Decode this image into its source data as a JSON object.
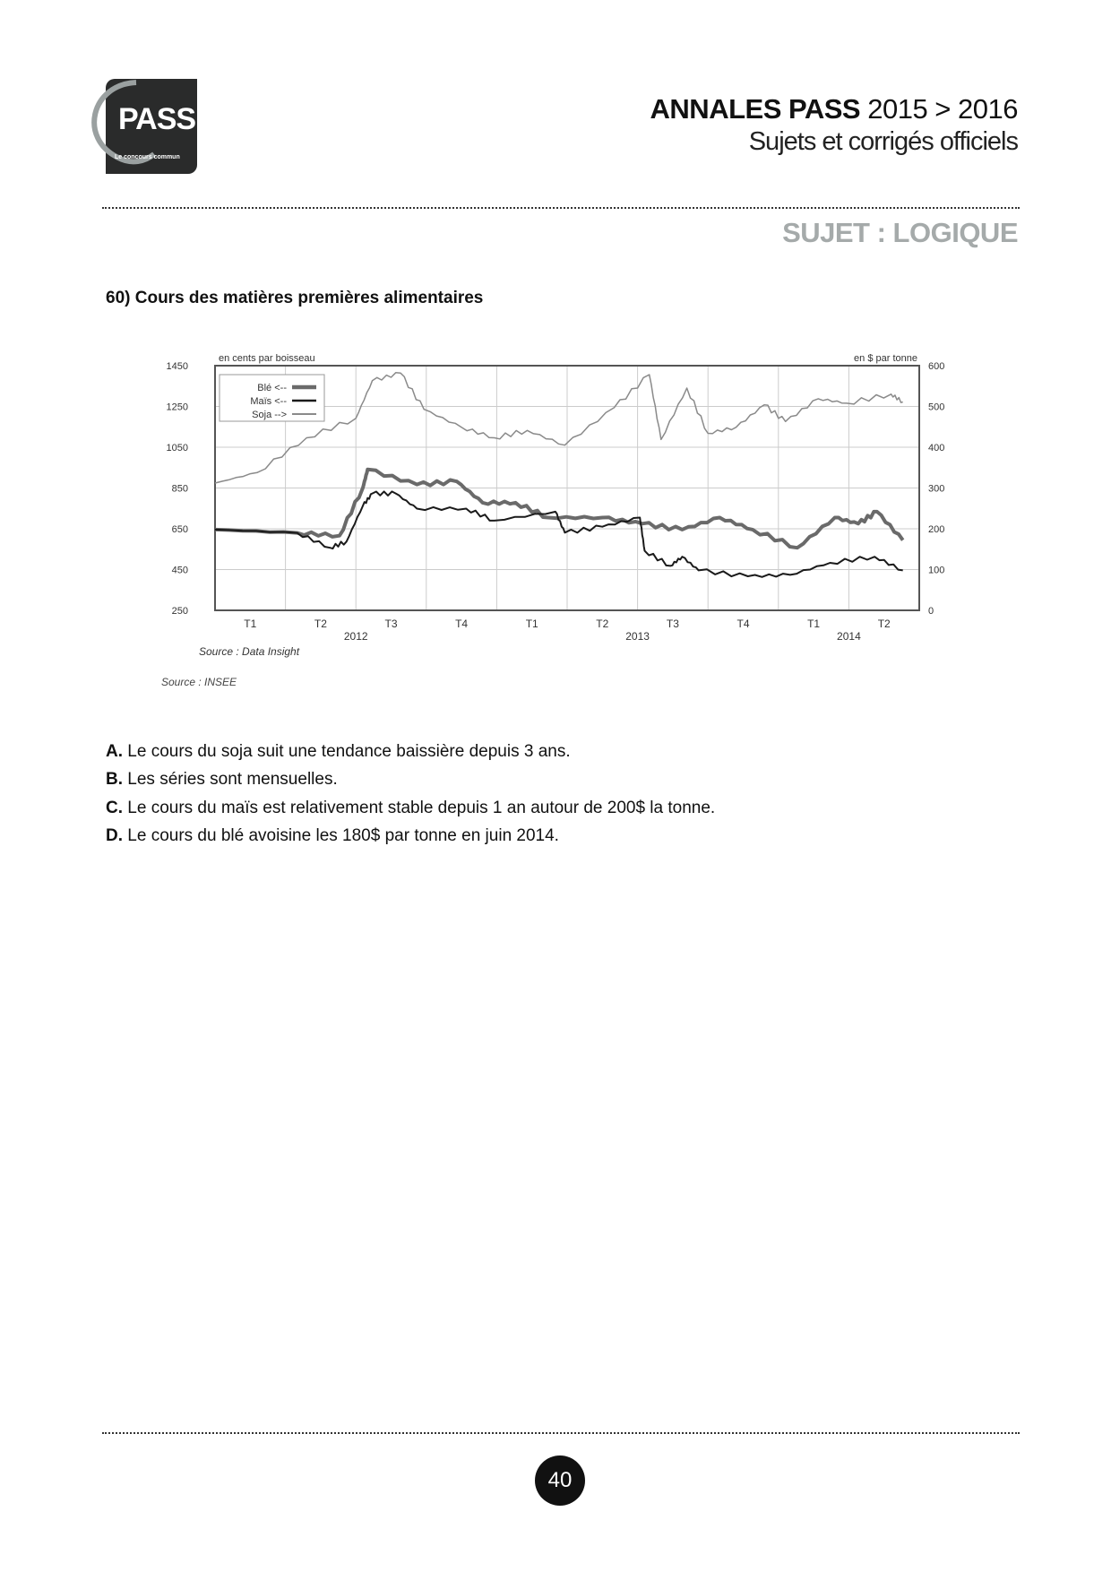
{
  "logo": {
    "text": "PASS",
    "tagline": "Le concours commun"
  },
  "header": {
    "title_bold": "ANNALES PASS",
    "title_years": "2015 > 2016",
    "subtitle": "Sujets et corrigés officiels"
  },
  "subject": "SUJET : LOGIQUE",
  "question": {
    "title": "60) Cours des matières premières alimentaires",
    "options": [
      {
        "letter": "A.",
        "text": "Le cours du soja suit une tendance baissière depuis 3 ans."
      },
      {
        "letter": "B.",
        "text": "Les séries sont mensuelles."
      },
      {
        "letter": "C.",
        "text": "Le cours du maïs est relativement stable depuis 1 an autour de 200$ la tonne."
      },
      {
        "letter": "D.",
        "text": "Le cours du blé avoisine les 180$ par tonne en juin 2014."
      }
    ]
  },
  "chart_data": {
    "type": "line",
    "xlabel": "",
    "ylabel_left": "en cents par boisseau",
    "ylabel_right": "en $ par tonne",
    "ylim_left": [
      250,
      1450
    ],
    "ylim_right": [
      0,
      600
    ],
    "yticks_left": [
      "250",
      "450",
      "650",
      "850",
      "1050",
      "1250",
      "1450"
    ],
    "yticks_right": [
      "0",
      "100",
      "200",
      "300",
      "400",
      "500",
      "600"
    ],
    "x_unit": "months since Jan 2012",
    "xlim": [
      0,
      30
    ],
    "quarter_labels": [
      "T1",
      "T2",
      "T3",
      "T4",
      "T1",
      "T2",
      "T3",
      "T4",
      "T1",
      "T2"
    ],
    "year_labels": [
      {
        "label": "2012",
        "x": 6
      },
      {
        "label": "2013",
        "x": 18
      },
      {
        "label": "2014",
        "x": 27
      }
    ],
    "legend": {
      "placement": "top-left",
      "entries": [
        "Blé <--",
        "Maïs <--",
        "Soja -->"
      ]
    },
    "grid": true,
    "series": [
      {
        "name": "Blé",
        "axis": "left",
        "color": "#6a6a6a",
        "width": 4,
        "x": [
          0,
          3.5,
          5.3,
          6.3,
          6.5,
          8.6,
          10.3,
          11.4,
          12.8,
          14.2,
          16.5,
          18.2,
          19.9,
          21.5,
          22.9,
          24.8,
          26.4,
          27.4,
          28.2,
          29.3
        ],
        "y": [
          646,
          630,
          616,
          852,
          941,
          867,
          882,
          778,
          778,
          705,
          705,
          675,
          646,
          705,
          646,
          557,
          705,
          675,
          734,
          594
        ]
      },
      {
        "name": "Maïs",
        "axis": "left",
        "color": "#1a1a1a",
        "width": 2,
        "x": [
          0,
          3.5,
          4.9,
          5.6,
          6.3,
          6.7,
          7.7,
          8.6,
          10.7,
          11.9,
          14.5,
          14.9,
          16.5,
          18.1,
          18.3,
          19.4,
          19.9,
          20.6,
          22.7,
          24.5,
          26.2,
          28.1,
          29.3
        ],
        "y": [
          646,
          630,
          557,
          587,
          764,
          823,
          823,
          749,
          749,
          690,
          734,
          631,
          660,
          705,
          542,
          468,
          513,
          446,
          417,
          424,
          483,
          513,
          446
        ]
      },
      {
        "name": "Soja",
        "axis": "right",
        "color": "#8a8a8a",
        "width": 1.5,
        "x": [
          0,
          1.8,
          3.9,
          6,
          6.7,
          7.9,
          8.9,
          10.5,
          11.9,
          13.3,
          14.9,
          17,
          18.5,
          19,
          20.1,
          21,
          22.2,
          23.4,
          24.3,
          25.7,
          26.9,
          28.8,
          29.3
        ],
        "y": [
          312,
          338,
          423,
          471,
          563,
          582,
          493,
          449,
          423,
          441,
          405,
          497,
          578,
          419,
          545,
          434,
          449,
          504,
          463,
          519,
          508,
          530,
          511
        ]
      }
    ],
    "sources": [
      "Source : Data Insight",
      "Source : INSEE"
    ]
  },
  "page_number": "40"
}
